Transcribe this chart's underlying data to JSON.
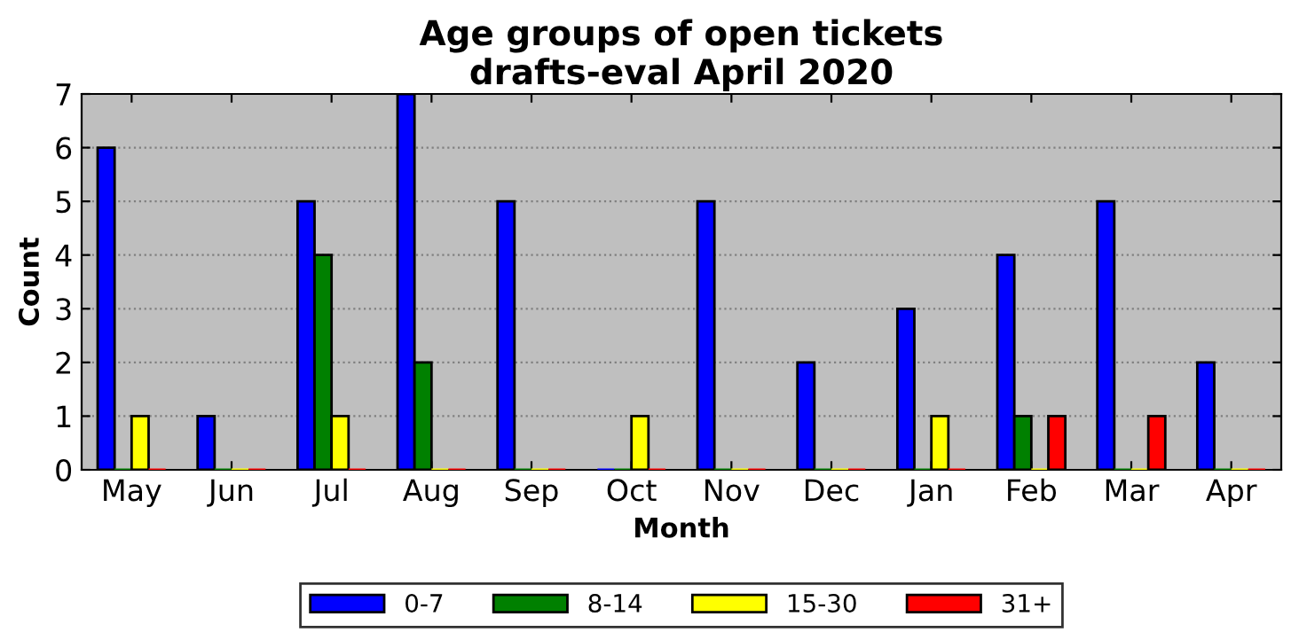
{
  "chart_data": {
    "type": "bar",
    "title": "Age groups of open tickets\ndrafts-eval April 2020",
    "xlabel": "Month",
    "ylabel": "Count",
    "categories": [
      "May",
      "Jun",
      "Jul",
      "Aug",
      "Sep",
      "Oct",
      "Nov",
      "Dec",
      "Jan",
      "Feb",
      "Mar",
      "Apr"
    ],
    "series": [
      {
        "name": "0-7",
        "color": "#0000ff",
        "values": [
          6,
          1,
          5,
          7,
          5,
          0,
          5,
          2,
          3,
          4,
          5,
          2
        ]
      },
      {
        "name": "8-14",
        "color": "#008000",
        "values": [
          0,
          0,
          4,
          2,
          0,
          0,
          0,
          0,
          0,
          1,
          0,
          0
        ]
      },
      {
        "name": "15-30",
        "color": "#ffff00",
        "values": [
          1,
          0,
          1,
          0,
          0,
          1,
          0,
          0,
          1,
          0,
          0,
          0
        ]
      },
      {
        "name": "31+",
        "color": "#ff0000",
        "values": [
          0,
          0,
          0,
          0,
          0,
          0,
          0,
          0,
          0,
          1,
          1,
          0
        ]
      }
    ],
    "ylim": [
      0,
      7
    ],
    "yticks": [
      0,
      1,
      2,
      3,
      4,
      5,
      6,
      7
    ],
    "grid": "y",
    "legend": "bottom"
  }
}
